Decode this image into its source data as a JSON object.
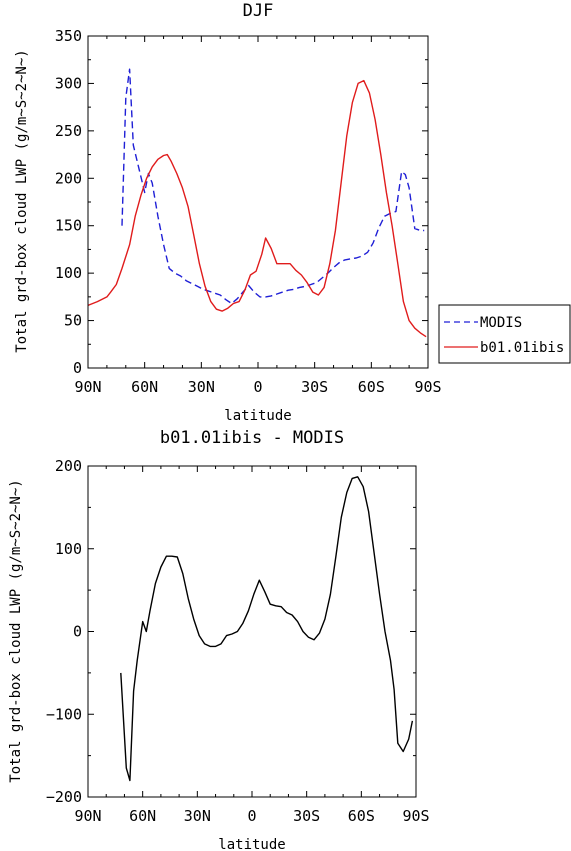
{
  "chart_data": [
    {
      "type": "line",
      "title": "DJF",
      "xlabel": "latitude",
      "ylabel": "Total grd-box cloud LWP (g/m~S~2~N~)",
      "xlim": [
        90,
        -90
      ],
      "ylim": [
        0,
        350
      ],
      "x_ticks": [
        90,
        60,
        30,
        0,
        -30,
        -60,
        -90
      ],
      "x_tick_labels": [
        "90N",
        "60N",
        "30N",
        "0",
        "30S",
        "60S",
        "90S"
      ],
      "y_ticks": [
        0,
        50,
        100,
        150,
        200,
        250,
        300,
        350
      ],
      "y_tick_labels": [
        "0",
        "50",
        "100",
        "150",
        "200",
        "250",
        "300",
        "350"
      ],
      "legend": "outside-right",
      "series": [
        {
          "name": "MODIS",
          "color": "#1f1fd6",
          "dash": "dashed",
          "x": [
            72,
            70,
            68,
            66,
            63,
            60,
            58,
            56,
            53,
            50,
            47,
            44,
            41,
            38,
            35,
            32,
            29,
            26,
            23,
            20,
            17,
            14,
            11,
            8,
            5,
            2,
            -1,
            -4,
            -7,
            -10,
            -13,
            -16,
            -19,
            -22,
            -25,
            -28,
            -31,
            -34,
            -37,
            -40,
            -43,
            -46,
            -49,
            -52,
            -55,
            -58,
            -61,
            -64,
            -67,
            -70,
            -73,
            -76,
            -78,
            -80,
            -83,
            -86,
            -88
          ],
          "y": [
            150,
            285,
            315,
            235,
            210,
            185,
            205,
            195,
            160,
            130,
            105,
            100,
            97,
            92,
            89,
            86,
            83,
            81,
            79,
            77,
            72,
            68,
            73,
            80,
            87,
            80,
            75,
            75,
            76,
            78,
            80,
            82,
            83,
            85,
            86,
            88,
            90,
            95,
            100,
            106,
            111,
            114,
            115,
            116,
            118,
            122,
            132,
            148,
            160,
            163,
            165,
            207,
            204,
            190,
            147,
            145,
            145
          ]
        },
        {
          "name": "b01.01ibis",
          "color": "#e01c1c",
          "dash": "solid",
          "x": [
            90,
            85,
            80,
            78,
            75,
            72,
            68,
            65,
            62,
            59,
            56,
            53,
            50,
            48,
            46,
            43,
            40,
            37,
            34,
            31,
            28,
            25,
            22,
            19,
            16,
            13,
            10,
            7,
            4,
            1,
            -2,
            -4,
            -7,
            -10,
            -14,
            -17,
            -20,
            -23,
            -26,
            -29,
            -32,
            -35,
            -38,
            -41,
            -44,
            -47,
            -50,
            -53,
            -56,
            -59,
            -62,
            -65,
            -68,
            -71,
            -74,
            -77,
            -80,
            -83,
            -86,
            -89
          ],
          "y": [
            66,
            70,
            75,
            80,
            88,
            105,
            130,
            160,
            182,
            200,
            212,
            220,
            224,
            225,
            218,
            205,
            190,
            170,
            140,
            110,
            86,
            70,
            62,
            60,
            63,
            68,
            70,
            82,
            98,
            102,
            120,
            137,
            126,
            110,
            110,
            110,
            103,
            98,
            90,
            80,
            77,
            85,
            110,
            145,
            195,
            245,
            280,
            300,
            303,
            290,
            262,
            225,
            185,
            150,
            110,
            70,
            50,
            42,
            37,
            33
          ]
        }
      ]
    },
    {
      "type": "line",
      "title": "b01.01ibis - MODIS",
      "xlabel": "latitude",
      "ylabel": "Total grd-box cloud LWP (g/m~S~2~N~)",
      "xlim": [
        90,
        -90
      ],
      "ylim": [
        -200,
        200
      ],
      "x_ticks": [
        90,
        60,
        30,
        0,
        -30,
        -60,
        -90
      ],
      "x_tick_labels": [
        "90N",
        "60N",
        "30N",
        "0",
        "30S",
        "60S",
        "90S"
      ],
      "y_ticks": [
        -200,
        -100,
        0,
        100,
        200
      ],
      "y_tick_labels": [
        "−200",
        "−100",
        "0",
        "100",
        "200"
      ],
      "series": [
        {
          "color": "#000000",
          "dash": "solid",
          "x": [
            72,
            69,
            67,
            65,
            63,
            60,
            58,
            56,
            53,
            50,
            47,
            44,
            41,
            38,
            35,
            32,
            29,
            26,
            23,
            20,
            17,
            14,
            11,
            8,
            5,
            2,
            -1,
            -4,
            -7,
            -10,
            -13,
            -16,
            -19,
            -22,
            -25,
            -28,
            -31,
            -34,
            -37,
            -40,
            -43,
            -46,
            -49,
            -52,
            -55,
            -58,
            -61,
            -64,
            -67,
            -70,
            -73,
            -76,
            -78,
            -80,
            -83,
            -86,
            -88
          ],
          "y": [
            -50,
            -165,
            -180,
            -72,
            -35,
            12,
            0,
            25,
            58,
            78,
            91,
            91,
            90,
            70,
            40,
            15,
            -5,
            -15,
            -18,
            -18,
            -15,
            -5,
            -3,
            0,
            10,
            25,
            45,
            62,
            48,
            33,
            31,
            30,
            23,
            20,
            12,
            0,
            -7,
            -10,
            -2,
            15,
            45,
            90,
            138,
            168,
            185,
            187,
            175,
            145,
            95,
            45,
            0,
            -35,
            -70,
            -135,
            -145,
            -130,
            -108
          ]
        }
      ]
    }
  ]
}
